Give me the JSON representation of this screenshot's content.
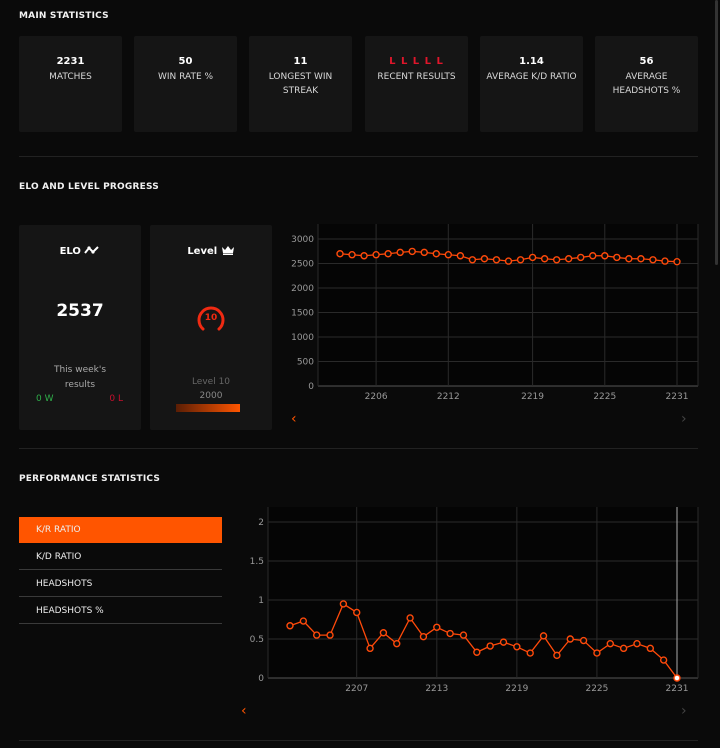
{
  "main_statistics": {
    "title": "MAIN STATISTICS",
    "cards": [
      {
        "value": "2231",
        "label": "MATCHES"
      },
      {
        "value": "50",
        "label": "WIN RATE %"
      },
      {
        "value": "11",
        "label": "LONGEST WIN STREAK"
      },
      {
        "value": "L L L L L",
        "label": "RECENT RESULTS"
      },
      {
        "value": "1.14",
        "label": "AVERAGE K/D RATIO"
      },
      {
        "value": "56",
        "label": "AVERAGE HEADSHOTS %"
      }
    ]
  },
  "elo_section": {
    "title": "ELO AND LEVEL PROGRESS",
    "elo_card": {
      "title": "ELO",
      "icon": "trend-line-icon",
      "value": "2537",
      "week_label": "This week's results",
      "wins": "0 W",
      "losses": "0 L"
    },
    "level_card": {
      "title": "Level",
      "icon": "crown-icon",
      "level": "10",
      "level_label": "Level 10",
      "elo_threshold": "2000",
      "progress": 1.0
    }
  },
  "performance_section": {
    "title": "PERFORMANCE STATISTICS",
    "menu": [
      {
        "label": "K/R RATIO",
        "active": true
      },
      {
        "label": "K/D RATIO",
        "active": false
      },
      {
        "label": "HEADSHOTS",
        "active": false
      },
      {
        "label": "HEADSHOTS %",
        "active": false
      }
    ]
  },
  "colors": {
    "accent": "#ff5500",
    "loss": "#e0162b",
    "win": "#2fae4a",
    "card": "#151515",
    "background": "#0a0a0a"
  },
  "chart_data": [
    {
      "type": "line",
      "title": "ELO",
      "x": [
        2203,
        2204,
        2205,
        2206,
        2207,
        2208,
        2209,
        2210,
        2211,
        2212,
        2213,
        2214,
        2215,
        2216,
        2217,
        2218,
        2219,
        2220,
        2221,
        2222,
        2223,
        2224,
        2225,
        2226,
        2227,
        2228,
        2229,
        2230,
        2231
      ],
      "values": [
        2699,
        2679,
        2658,
        2679,
        2699,
        2727,
        2747,
        2727,
        2699,
        2679,
        2658,
        2576,
        2597,
        2576,
        2549,
        2576,
        2624,
        2597,
        2576,
        2597,
        2624,
        2658,
        2658,
        2624,
        2597,
        2597,
        2576,
        2549,
        2537
      ],
      "xticks": [
        "2206",
        "2212",
        "2219",
        "2225",
        "2231"
      ],
      "xtick_index": [
        3,
        9,
        16,
        22,
        28
      ],
      "yticks": [
        "0",
        "500",
        "1000",
        "1500",
        "2000",
        "2500",
        "3000"
      ],
      "ylim": [
        0,
        3000
      ],
      "grid": true
    },
    {
      "type": "line",
      "title": "K/R RATIO",
      "x": [
        2202,
        2203,
        2204,
        2205,
        2206,
        2207,
        2208,
        2209,
        2210,
        2211,
        2212,
        2213,
        2214,
        2215,
        2216,
        2217,
        2218,
        2219,
        2220,
        2221,
        2222,
        2223,
        2224,
        2225,
        2226,
        2227,
        2228,
        2229,
        2230,
        2231
      ],
      "values": [
        0.67,
        0.73,
        0.55,
        0.55,
        0.95,
        0.84,
        0.38,
        0.58,
        0.44,
        0.77,
        0.53,
        0.65,
        0.57,
        0.55,
        0.33,
        0.41,
        0.46,
        0.4,
        0.32,
        0.54,
        0.29,
        0.5,
        0.48,
        0.32,
        0.44,
        0.38,
        0.44,
        0.38,
        0.23,
        0
      ],
      "xticks": [
        "2207",
        "2213",
        "2219",
        "2225",
        "2231"
      ],
      "xtick_index": [
        5,
        11,
        17,
        23,
        29
      ],
      "yticks": [
        "0",
        "0.5",
        "1",
        "1.5",
        "2"
      ],
      "ylim": [
        0,
        2
      ],
      "grid": true,
      "highlight_index": 29
    }
  ]
}
